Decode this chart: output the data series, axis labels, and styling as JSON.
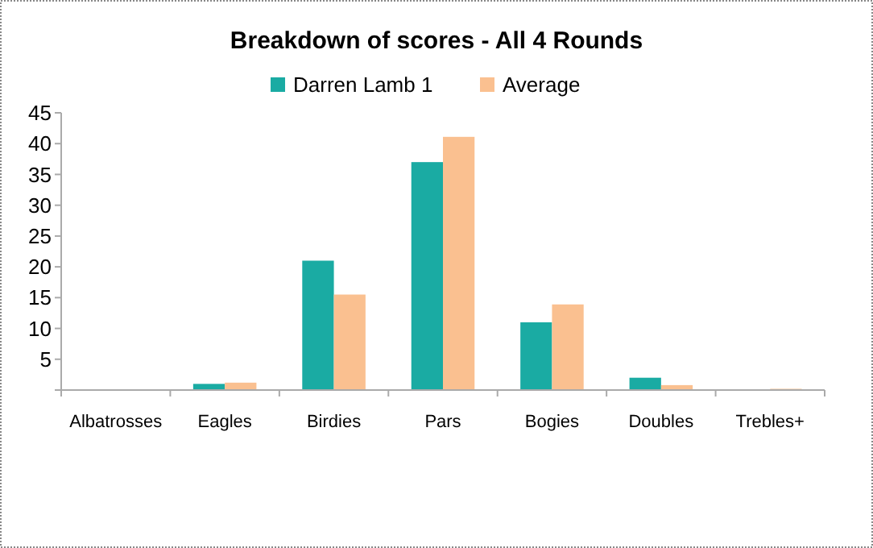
{
  "chart_data": {
    "type": "bar",
    "title": "Breakdown of scores - All 4 Rounds",
    "categories": [
      "Albatrosses",
      "Eagles",
      "Birdies",
      "Pars",
      "Bogies",
      "Doubles",
      "Trebles+"
    ],
    "series": [
      {
        "name": "Darren Lamb 1",
        "color": "#1aaba3",
        "values": [
          0,
          1,
          21,
          37,
          11,
          2,
          0
        ]
      },
      {
        "name": "Average",
        "color": "#fac090",
        "values": [
          0,
          1.2,
          15.5,
          41.1,
          13.9,
          0.8,
          0.2
        ]
      }
    ],
    "ylim": [
      0,
      45
    ],
    "yticks": [
      {
        "value": 0,
        "label": null
      },
      5,
      10,
      15,
      20,
      25,
      30,
      35,
      40,
      45
    ],
    "grid": false,
    "legend": "top"
  }
}
